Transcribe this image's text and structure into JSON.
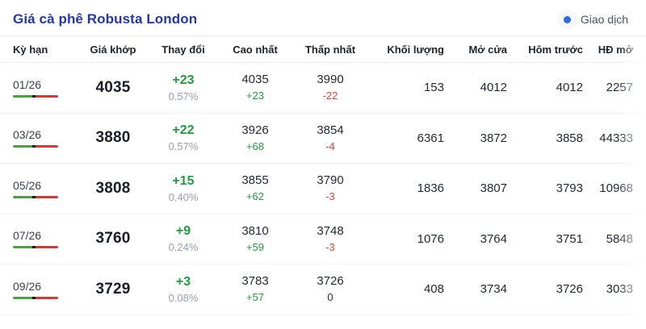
{
  "header": {
    "title": "Giá cà phê Robusta London",
    "trade_badge_label": "Giao dịch"
  },
  "palette": {
    "title_blue": "#2438a5",
    "badge_dot_blue": "#2e6be6",
    "up_green": "#1f9c3d",
    "down_red": "#e04536",
    "muted_gray": "#99a0ab",
    "bar_green": "#4ca13f",
    "bar_red": "#d23b30"
  },
  "table": {
    "columns": [
      "Kỳ hạn",
      "Giá khớp",
      "Thay đổi",
      "Cao nhất",
      "Thấp nhất",
      "Khối lượng",
      "Mở cửa",
      "Hôm trước",
      "HĐ mở"
    ],
    "rows": [
      {
        "contract": "01/26",
        "price": "4035",
        "change": "+23",
        "change_pct": "0.57%",
        "high": "4035",
        "high_change": "+23",
        "low": "3990",
        "low_change": "-22",
        "volume": "153",
        "open": "4012",
        "prev_close": "4012",
        "open_interest": "2257"
      },
      {
        "contract": "03/26",
        "price": "3880",
        "change": "+22",
        "change_pct": "0.57%",
        "high": "3926",
        "high_change": "+68",
        "low": "3854",
        "low_change": "-4",
        "volume": "6361",
        "open": "3872",
        "prev_close": "3858",
        "open_interest": "44333"
      },
      {
        "contract": "05/26",
        "price": "3808",
        "change": "+15",
        "change_pct": "0.40%",
        "high": "3855",
        "high_change": "+62",
        "low": "3790",
        "low_change": "-3",
        "volume": "1836",
        "open": "3807",
        "prev_close": "3793",
        "open_interest": "10968"
      },
      {
        "contract": "07/26",
        "price": "3760",
        "change": "+9",
        "change_pct": "0.24%",
        "high": "3810",
        "high_change": "+59",
        "low": "3748",
        "low_change": "-3",
        "volume": "1076",
        "open": "3764",
        "prev_close": "3751",
        "open_interest": "5848"
      },
      {
        "contract": "09/26",
        "price": "3729",
        "change": "+3",
        "change_pct": "0.08%",
        "high": "3783",
        "high_change": "+57",
        "low": "3726",
        "low_change": "0",
        "volume": "408",
        "open": "3734",
        "prev_close": "3726",
        "open_interest": "3033"
      }
    ]
  }
}
